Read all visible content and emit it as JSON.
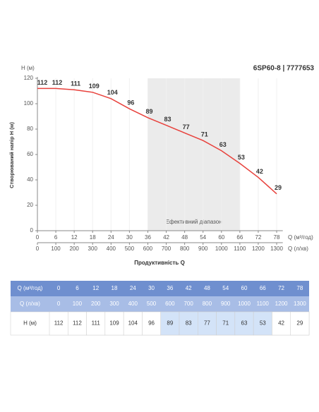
{
  "chart_data": {
    "type": "line",
    "title": "6SP60-8 | 7777653",
    "y_unit_label": "H (м)",
    "y_label": "Створюваний напір Н (м)",
    "x_label": "Продуктивність Q",
    "x_unit_label": "Q (м³/год)",
    "x2_unit_label": "Q (л/хв)",
    "x": [
      0,
      6,
      12,
      18,
      24,
      30,
      36,
      42,
      48,
      54,
      60,
      66,
      72,
      78
    ],
    "x2": [
      0,
      100,
      200,
      300,
      400,
      500,
      600,
      700,
      800,
      900,
      1000,
      1100,
      1200,
      1300
    ],
    "values": [
      112,
      112,
      111,
      109,
      104,
      96,
      89,
      83,
      77,
      71,
      63,
      53,
      42,
      29
    ],
    "color": "#e8413c",
    "xlim": [
      0,
      80
    ],
    "xticks": [
      0,
      6,
      12,
      18,
      24,
      30,
      36,
      42,
      48,
      54,
      60,
      66,
      72,
      78
    ],
    "x2lim": [
      0,
      1333.3
    ],
    "x2ticks": [
      0,
      100,
      200,
      300,
      400,
      500,
      600,
      700,
      800,
      900,
      1000,
      1100,
      1200,
      1300
    ],
    "ylim": [
      0,
      120
    ],
    "yticks": [
      0,
      20,
      40,
      60,
      80,
      100,
      120
    ],
    "grid": true,
    "shade": {
      "label": "Ефективний діапазон",
      "range": [
        36,
        66
      ],
      "color": "#ebebeb",
      "table_color": "#d3e3f8"
    }
  }
}
